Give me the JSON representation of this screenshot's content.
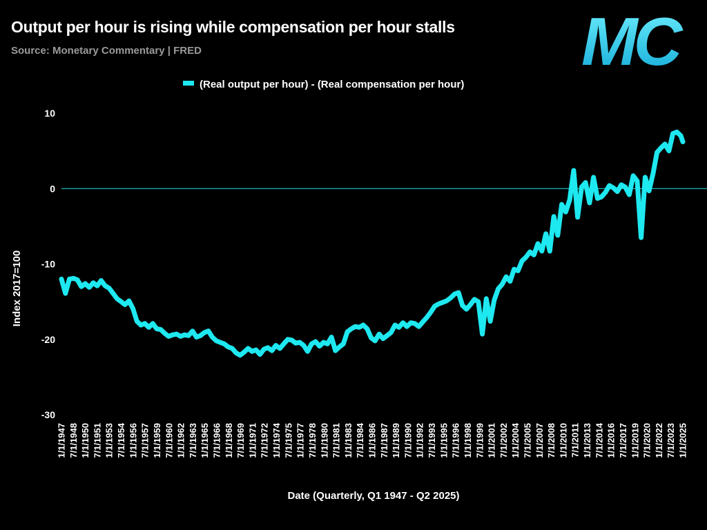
{
  "header": {
    "title": "Output per hour is rising while compensation per hour stalls",
    "subtitle": "Source: Monetary Commentary | FRED",
    "logo_text": "MC",
    "logo_icon": "mc-logo"
  },
  "colors": {
    "background": "#000000",
    "series": "#1ee8f0",
    "zero_line": "#1ee8f0",
    "logo": "#2ad4f0"
  },
  "chart_data": {
    "type": "line",
    "title": "Output per hour is rising while compensation per hour stalls",
    "xlabel": "Date (Quarterly, Q1 1947 - Q2 2025)",
    "ylabel": "Index 2017=100",
    "ylim": [
      -30,
      10
    ],
    "yticks": [
      10,
      0,
      -10,
      -20,
      -30
    ],
    "xlim": [
      1947.0,
      2025.25
    ],
    "grid": false,
    "legend_position": "top-center",
    "x_tick_labels": [
      "1/1/1947",
      "7/1/1948",
      "1/1/1950",
      "7/1/1951",
      "1/1/1953",
      "7/1/1954",
      "1/1/1956",
      "7/1/1957",
      "1/1/1959",
      "7/1/1960",
      "1/1/1962",
      "7/1/1963",
      "1/1/1965",
      "7/1/1966",
      "1/1/1968",
      "7/1/1969",
      "1/1/1971",
      "7/1/1972",
      "1/1/1974",
      "7/1/1975",
      "1/1/1977",
      "7/1/1978",
      "1/1/1980",
      "7/1/1981",
      "1/1/1983",
      "7/1/1984",
      "1/1/1986",
      "7/1/1987",
      "1/1/1989",
      "7/1/1990",
      "1/1/1992",
      "7/1/1993",
      "1/1/1995",
      "7/1/1996",
      "1/1/1998",
      "7/1/1999",
      "1/1/2001",
      "7/1/2002",
      "1/1/2004",
      "7/1/2005",
      "1/1/2007",
      "7/1/2008",
      "1/1/2010",
      "7/1/2011",
      "1/1/2013",
      "7/1/2014",
      "1/1/2016",
      "7/1/2017",
      "1/1/2019",
      "7/1/2020",
      "1/1/2022",
      "7/1/2023",
      "1/1/2025"
    ],
    "series": [
      {
        "name": "(Real output per hour) - (Real compensation per hour)",
        "color": "#1ee8f0",
        "points": [
          [
            1947.0,
            -12.0
          ],
          [
            1947.5,
            -13.9
          ],
          [
            1948.0,
            -12.0
          ],
          [
            1948.5,
            -11.9
          ],
          [
            1949.0,
            -12.1
          ],
          [
            1949.5,
            -13.0
          ],
          [
            1950.0,
            -12.6
          ],
          [
            1950.5,
            -13.1
          ],
          [
            1951.0,
            -12.5
          ],
          [
            1951.5,
            -12.9
          ],
          [
            1952.0,
            -12.2
          ],
          [
            1952.5,
            -12.9
          ],
          [
            1953.0,
            -13.2
          ],
          [
            1953.5,
            -13.9
          ],
          [
            1954.0,
            -14.6
          ],
          [
            1954.5,
            -15.0
          ],
          [
            1955.0,
            -15.4
          ],
          [
            1955.5,
            -14.9
          ],
          [
            1956.0,
            -15.9
          ],
          [
            1956.5,
            -17.6
          ],
          [
            1957.0,
            -18.1
          ],
          [
            1957.5,
            -17.9
          ],
          [
            1958.0,
            -18.4
          ],
          [
            1958.5,
            -17.9
          ],
          [
            1959.0,
            -18.6
          ],
          [
            1959.5,
            -18.7
          ],
          [
            1960.0,
            -19.2
          ],
          [
            1960.5,
            -19.6
          ],
          [
            1961.0,
            -19.4
          ],
          [
            1961.5,
            -19.3
          ],
          [
            1962.0,
            -19.6
          ],
          [
            1962.5,
            -19.4
          ],
          [
            1963.0,
            -19.5
          ],
          [
            1963.5,
            -18.9
          ],
          [
            1964.0,
            -19.7
          ],
          [
            1964.5,
            -19.5
          ],
          [
            1965.0,
            -19.1
          ],
          [
            1965.5,
            -18.9
          ],
          [
            1966.0,
            -19.7
          ],
          [
            1966.5,
            -20.2
          ],
          [
            1967.0,
            -20.4
          ],
          [
            1967.5,
            -20.6
          ],
          [
            1968.0,
            -21.0
          ],
          [
            1968.5,
            -21.2
          ],
          [
            1969.0,
            -21.8
          ],
          [
            1969.5,
            -22.1
          ],
          [
            1970.0,
            -21.7
          ],
          [
            1970.5,
            -21.2
          ],
          [
            1971.0,
            -21.6
          ],
          [
            1971.5,
            -21.4
          ],
          [
            1972.0,
            -22.0
          ],
          [
            1972.5,
            -21.3
          ],
          [
            1973.0,
            -21.1
          ],
          [
            1973.5,
            -21.5
          ],
          [
            1974.0,
            -20.8
          ],
          [
            1974.5,
            -21.2
          ],
          [
            1975.0,
            -20.6
          ],
          [
            1975.5,
            -20.0
          ],
          [
            1976.0,
            -20.1
          ],
          [
            1976.5,
            -20.5
          ],
          [
            1977.0,
            -20.4
          ],
          [
            1977.5,
            -20.8
          ],
          [
            1978.0,
            -21.6
          ],
          [
            1978.5,
            -20.6
          ],
          [
            1979.0,
            -20.3
          ],
          [
            1979.5,
            -20.9
          ],
          [
            1980.0,
            -20.4
          ],
          [
            1980.5,
            -20.6
          ],
          [
            1981.0,
            -19.7
          ],
          [
            1981.5,
            -21.5
          ],
          [
            1982.0,
            -21.0
          ],
          [
            1982.5,
            -20.6
          ],
          [
            1983.0,
            -19.0
          ],
          [
            1983.5,
            -18.6
          ],
          [
            1984.0,
            -18.3
          ],
          [
            1984.5,
            -18.4
          ],
          [
            1985.0,
            -18.1
          ],
          [
            1985.5,
            -18.6
          ],
          [
            1986.0,
            -19.8
          ],
          [
            1986.5,
            -20.2
          ],
          [
            1987.0,
            -19.3
          ],
          [
            1987.5,
            -19.9
          ],
          [
            1988.0,
            -19.5
          ],
          [
            1988.5,
            -19.1
          ],
          [
            1989.0,
            -18.1
          ],
          [
            1989.5,
            -18.4
          ],
          [
            1990.0,
            -17.8
          ],
          [
            1990.5,
            -18.3
          ],
          [
            1991.0,
            -17.8
          ],
          [
            1991.5,
            -17.9
          ],
          [
            1992.0,
            -18.3
          ],
          [
            1992.5,
            -17.7
          ],
          [
            1993.0,
            -17.1
          ],
          [
            1993.5,
            -16.4
          ],
          [
            1994.0,
            -15.6
          ],
          [
            1994.5,
            -15.3
          ],
          [
            1995.0,
            -15.1
          ],
          [
            1995.5,
            -14.9
          ],
          [
            1996.0,
            -14.5
          ],
          [
            1996.5,
            -14.0
          ],
          [
            1997.0,
            -13.8
          ],
          [
            1997.5,
            -15.5
          ],
          [
            1998.0,
            -16.0
          ],
          [
            1998.5,
            -15.4
          ],
          [
            1999.0,
            -14.7
          ],
          [
            1999.5,
            -15.0
          ],
          [
            2000.0,
            -19.3
          ],
          [
            2000.5,
            -14.6
          ],
          [
            2001.0,
            -17.6
          ],
          [
            2001.5,
            -14.8
          ],
          [
            2002.0,
            -13.3
          ],
          [
            2002.5,
            -12.7
          ],
          [
            2003.0,
            -11.7
          ],
          [
            2003.5,
            -12.3
          ],
          [
            2004.0,
            -10.7
          ],
          [
            2004.5,
            -10.9
          ],
          [
            2005.0,
            -9.6
          ],
          [
            2005.5,
            -9.1
          ],
          [
            2006.0,
            -8.4
          ],
          [
            2006.5,
            -8.8
          ],
          [
            2007.0,
            -7.3
          ],
          [
            2007.5,
            -8.3
          ],
          [
            2008.0,
            -6.0
          ],
          [
            2008.5,
            -8.3
          ],
          [
            2009.0,
            -3.7
          ],
          [
            2009.5,
            -6.2
          ],
          [
            2010.0,
            -2.1
          ],
          [
            2010.5,
            -3.1
          ],
          [
            2011.0,
            -1.5
          ],
          [
            2011.5,
            2.4
          ],
          [
            2012.0,
            -3.8
          ],
          [
            2012.5,
            0.2
          ],
          [
            2013.0,
            0.8
          ],
          [
            2013.5,
            -1.9
          ],
          [
            2014.0,
            1.5
          ],
          [
            2014.5,
            -1.3
          ],
          [
            2015.0,
            -1.1
          ],
          [
            2015.5,
            -0.5
          ],
          [
            2016.0,
            0.4
          ],
          [
            2016.5,
            0.1
          ],
          [
            2017.0,
            -0.4
          ],
          [
            2017.5,
            0.5
          ],
          [
            2018.0,
            0.2
          ],
          [
            2018.5,
            -0.8
          ],
          [
            2019.0,
            1.7
          ],
          [
            2019.5,
            1.0
          ],
          [
            2020.0,
            -6.5
          ],
          [
            2020.5,
            1.5
          ],
          [
            2021.0,
            -0.3
          ],
          [
            2021.5,
            2.0
          ],
          [
            2022.0,
            4.8
          ],
          [
            2022.5,
            5.4
          ],
          [
            2023.0,
            5.9
          ],
          [
            2023.5,
            5.0
          ],
          [
            2024.0,
            7.3
          ],
          [
            2024.5,
            7.5
          ],
          [
            2025.0,
            7.0
          ],
          [
            2025.25,
            6.2
          ]
        ]
      }
    ]
  }
}
